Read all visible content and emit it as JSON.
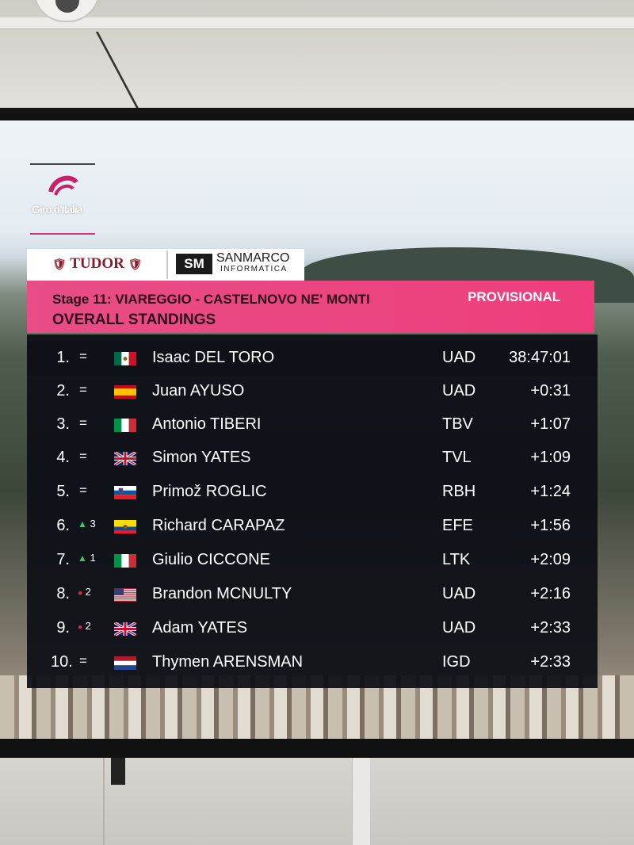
{
  "header": {
    "stage": "Stage 11: VIAREGGIO - CASTELNOVO NE' MONTI",
    "status": "PROVISIONAL",
    "title": "OVERALL STANDINGS"
  },
  "sponsors": {
    "left": "TUDOR",
    "right_mark": "SM",
    "right_name": "SANMARCO",
    "right_sub": "INFORMATICA"
  },
  "brand": "Giro d'Italia",
  "colors": {
    "header_pink": "#ee3e7c",
    "table_bg": "#0c0e16",
    "up": "#3ec46b",
    "down": "#e0284a"
  },
  "standings": [
    {
      "rank": "1.",
      "move": "=",
      "change": "",
      "flag": "mexico-flag",
      "name": "Isaac DEL TORO",
      "team": "UAD",
      "time": "38:47:01"
    },
    {
      "rank": "2.",
      "move": "=",
      "change": "",
      "flag": "spain-flag",
      "name": "Juan AYUSO",
      "team": "UAD",
      "time": "+0:31"
    },
    {
      "rank": "3.",
      "move": "=",
      "change": "",
      "flag": "italy-flag",
      "name": "Antonio TIBERI",
      "team": "TBV",
      "time": "+1:07"
    },
    {
      "rank": "4.",
      "move": "=",
      "change": "",
      "flag": "uk-flag",
      "name": "Simon YATES",
      "team": "TVL",
      "time": "+1:09"
    },
    {
      "rank": "5.",
      "move": "=",
      "change": "",
      "flag": "slovenia-flag",
      "name": "Primož ROGLIC",
      "team": "RBH",
      "time": "+1:24"
    },
    {
      "rank": "6.",
      "move": "up",
      "change": "3",
      "flag": "ecuador-flag",
      "name": "Richard CARAPAZ",
      "team": "EFE",
      "time": "+1:56"
    },
    {
      "rank": "7.",
      "move": "up",
      "change": "1",
      "flag": "italy-flag",
      "name": "Giulio CICCONE",
      "team": "LTK",
      "time": "+2:09"
    },
    {
      "rank": "8.",
      "move": "down",
      "change": "2",
      "flag": "usa-flag",
      "name": "Brandon MCNULTY",
      "team": "UAD",
      "time": "+2:16"
    },
    {
      "rank": "9.",
      "move": "down",
      "change": "2",
      "flag": "uk-flag",
      "name": "Adam YATES",
      "team": "UAD",
      "time": "+2:33"
    },
    {
      "rank": "10.",
      "move": "=",
      "change": "",
      "flag": "netherlands-flag",
      "name": "Thymen ARENSMAN",
      "team": "IGD",
      "time": "+2:33"
    }
  ]
}
